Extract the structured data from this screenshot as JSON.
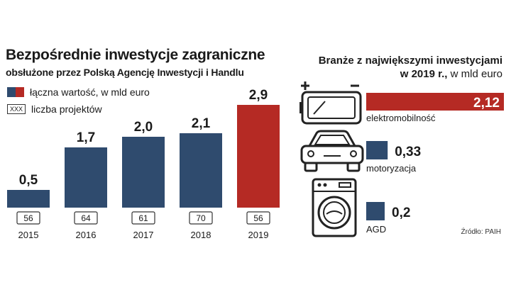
{
  "left": {
    "title": "Bezpośrednie inwestycje zagraniczne",
    "subtitle": "obsłużone przez Polską Agencję Inwestycji i Handlu",
    "legend_value": "łączna wartość, w mld euro",
    "legend_projects_box": "XXX",
    "legend_projects": "liczba projektów"
  },
  "right": {
    "title_line1": "Branże z największymi inwestycjami",
    "title_line2_bold": "w 2019 r.,",
    "title_line2_unit": " w mld euro"
  },
  "source": "Źródło: PAIH",
  "colors": {
    "blue": "#2f4b6e",
    "red": "#b52a24"
  },
  "icons": [
    "battery-icon",
    "car-icon",
    "washing-machine-icon"
  ],
  "chart_data": [
    {
      "type": "bar",
      "categories": [
        "2015",
        "2016",
        "2017",
        "2018",
        "2019"
      ],
      "values": [
        0.5,
        1.7,
        2.0,
        2.1,
        2.9
      ],
      "value_labels": [
        "0,5",
        "1,7",
        "2,0",
        "2,1",
        "2,9"
      ],
      "projects": [
        "56",
        "64",
        "61",
        "70",
        "56"
      ],
      "highlight_index": 4,
      "ylim": [
        0,
        2.9
      ]
    },
    {
      "type": "bar",
      "orientation": "horizontal",
      "categories": [
        "elektromobilność",
        "motoryzacja",
        "AGD"
      ],
      "values": [
        2.12,
        0.33,
        0.2
      ],
      "value_labels": [
        "2,12",
        "0,33",
        "0,2"
      ],
      "highlight_index": 0
    }
  ]
}
